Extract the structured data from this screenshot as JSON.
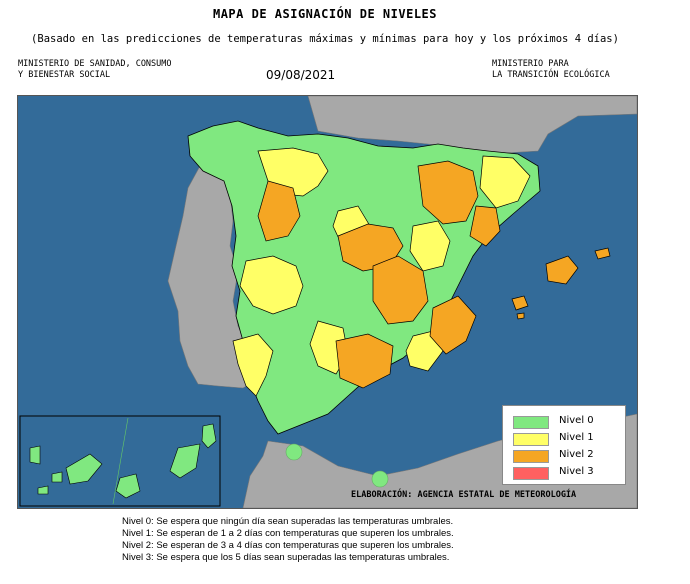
{
  "header": {
    "title": "MAPA DE ASIGNACIÓN DE NIVELES",
    "subtitle": "(Basado en las predicciones de temperaturas máximas y mínimas para hoy y los próximos 4 días)",
    "ministry_left": [
      "MINISTERIO DE SANIDAD, CONSUMO",
      "Y BIENESTAR SOCIAL"
    ],
    "date": "09/08/2021",
    "ministry_right": [
      "MINISTERIO PARA",
      "LA TRANSICIÓN ECOLÓGICA"
    ]
  },
  "map": {
    "sea_color": "#336b99",
    "land_color": "#a8a8a8",
    "level_colors": [
      "#80e880",
      "#ffff66",
      "#f5a623",
      "#ff6060"
    ],
    "credit": "ELABORACIÓN: AGENCIA ESTATAL DE METEOROLOGÍA"
  },
  "legend": [
    {
      "label": "Nivel 0",
      "color": "#80e880"
    },
    {
      "label": "Nivel 1",
      "color": "#ffff66"
    },
    {
      "label": "Nivel 2",
      "color": "#f5a623"
    },
    {
      "label": "Nivel 3",
      "color": "#ff6060"
    }
  ],
  "notes": [
    "Nivel 0: Se espera que ningún día sean superadas las temperaturas umbrales.",
    "Nivel 1: Se esperan de 1 a 2 días con temperaturas que superen los umbrales.",
    "Nivel 2: Se esperan de 3 a 4 días con temperaturas que superen los umbrales.",
    "Nivel 3: Se espera que los 5 días sean superadas las temperaturas umbrales."
  ]
}
